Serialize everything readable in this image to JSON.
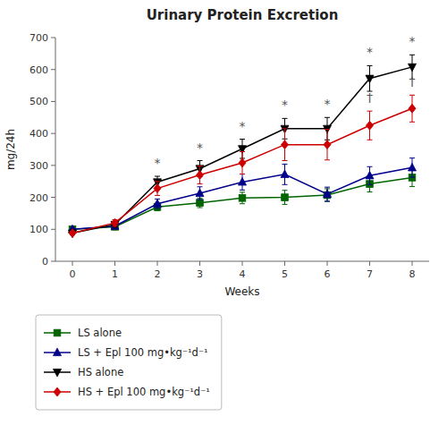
{
  "chart_data": {
    "type": "line",
    "title": "Urinary Protein Excretion",
    "x_label": "Weeks",
    "y_label": "mg/24h",
    "x": [
      0,
      1,
      2,
      3,
      4,
      5,
      6,
      7,
      8
    ],
    "xlim": [
      -0.4,
      8.4
    ],
    "xticks": [
      0,
      1,
      2,
      3,
      4,
      5,
      6,
      7,
      8
    ],
    "ylim": [
      0,
      700
    ],
    "yticks": [
      0,
      100,
      200,
      300,
      400,
      500,
      600,
      700
    ],
    "grid": false,
    "legend": "bottom",
    "series": [
      {
        "name": "LS alone",
        "color": "#006400",
        "marker": "square",
        "values": [
          100,
          108,
          170,
          183,
          198,
          200,
          207,
          242,
          262
        ],
        "errors": [
          4,
          6,
          12,
          15,
          18,
          22,
          20,
          25,
          28
        ]
      },
      {
        "name": "LS + Epl 100 mg•kg⁻¹d⁻¹",
        "color": "#00008B",
        "marker": "triangle-up",
        "values": [
          100,
          110,
          180,
          213,
          248,
          272,
          210,
          268,
          293
        ],
        "errors": [
          4,
          7,
          15,
          20,
          25,
          32,
          22,
          28,
          30
        ]
      },
      {
        "name": "HS alone",
        "color": "#000000",
        "marker": "triangle-down",
        "values": [
          88,
          115,
          248,
          290,
          352,
          415,
          415,
          572,
          608
        ],
        "errors": [
          5,
          8,
          18,
          25,
          30,
          32,
          35,
          40,
          38
        ]
      },
      {
        "name": "HS + Epl 100 mg•kg⁻¹d⁻¹",
        "color": "#CC0000",
        "marker": "diamond",
        "values": [
          88,
          120,
          228,
          270,
          308,
          365,
          365,
          425,
          478
        ],
        "errors": [
          5,
          10,
          22,
          28,
          35,
          50,
          48,
          45,
          42
        ]
      }
    ],
    "annotations": [
      {
        "text": "*",
        "x": 2,
        "y": 294
      },
      {
        "text": "*",
        "x": 3,
        "y": 343
      },
      {
        "text": "*",
        "x": 4,
        "y": 410
      },
      {
        "text": "*",
        "x": 5,
        "y": 475
      },
      {
        "text": "*",
        "x": 6,
        "y": 478
      },
      {
        "text": "*",
        "x": 7,
        "y": 640
      },
      {
        "text": "*",
        "x": 8,
        "y": 674
      },
      {
        "text": "†",
        "x": 7,
        "y": 498
      },
      {
        "text": "†",
        "x": 8,
        "y": 548
      }
    ]
  }
}
